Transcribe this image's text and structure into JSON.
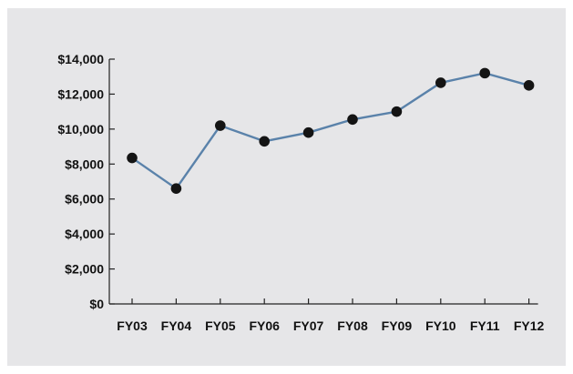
{
  "colors": {
    "background": "#e6e6e8",
    "line": "#5a82aa",
    "marker": "#141414",
    "axis": "#222222"
  },
  "chart_data": {
    "type": "line",
    "categories": [
      "FY03",
      "FY04",
      "FY05",
      "FY06",
      "FY07",
      "FY08",
      "FY09",
      "FY10",
      "FY11",
      "FY12"
    ],
    "series": [
      {
        "values": [
          8350,
          6600,
          10200,
          9300,
          9800,
          10550,
          11000,
          12650,
          13200,
          12500
        ]
      }
    ],
    "y_ticks": [
      0,
      2000,
      4000,
      6000,
      8000,
      10000,
      12000,
      14000
    ],
    "y_tick_labels": [
      "$0",
      "$2,000",
      "$4,000",
      "$6,000",
      "$8,000",
      "$10,000",
      "$12,000",
      "$14,000"
    ],
    "ylim": [
      0,
      14000
    ],
    "title": "",
    "xlabel": "",
    "ylabel": "",
    "grid": false,
    "legend": "none"
  }
}
